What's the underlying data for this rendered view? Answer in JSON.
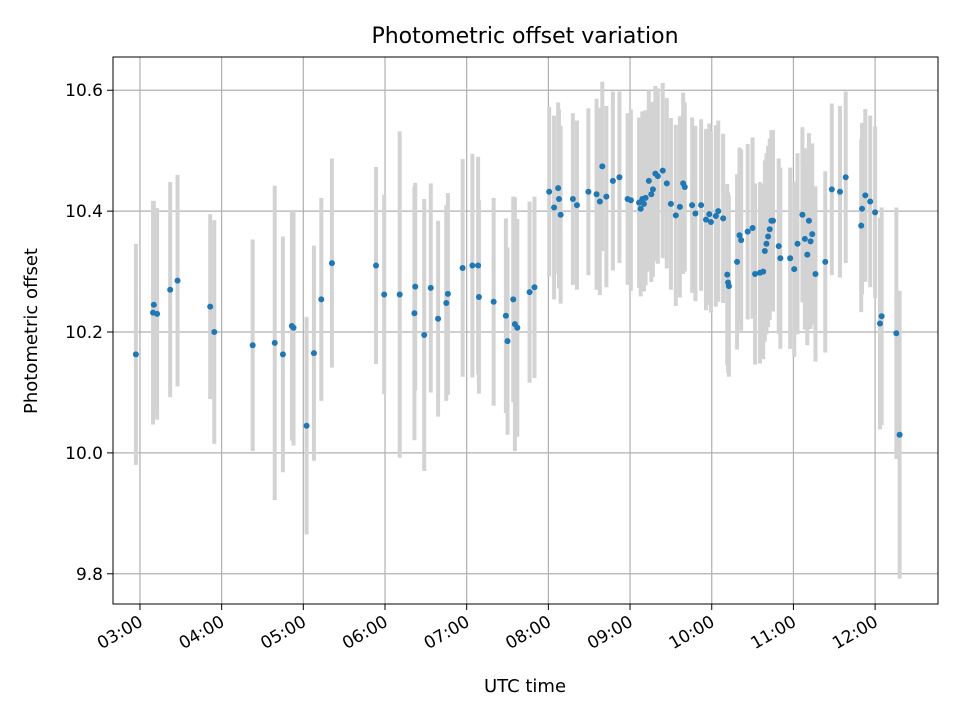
{
  "chart_data": {
    "type": "scatter",
    "title": "Photometric offset variation",
    "xlabel": "UTC time",
    "ylabel": "Photometric offset",
    "xlim": [
      2.67,
      12.77
    ],
    "ylim": [
      9.75,
      10.655
    ],
    "x_unit": "hours UTC",
    "grid": true,
    "xticks": [
      {
        "value": 3,
        "label": "03:00"
      },
      {
        "value": 4,
        "label": "04:00"
      },
      {
        "value": 5,
        "label": "05:00"
      },
      {
        "value": 6,
        "label": "06:00"
      },
      {
        "value": 7,
        "label": "07:00"
      },
      {
        "value": 8,
        "label": "08:00"
      },
      {
        "value": 9,
        "label": "09:00"
      },
      {
        "value": 10,
        "label": "10:00"
      },
      {
        "value": 11,
        "label": "11:00"
      },
      {
        "value": 12,
        "label": "12:00"
      }
    ],
    "yticks": [
      {
        "value": 9.8,
        "label": "9.8"
      },
      {
        "value": 10.0,
        "label": "10.0"
      },
      {
        "value": 10.2,
        "label": "10.2"
      },
      {
        "value": 10.4,
        "label": "10.4"
      },
      {
        "value": 10.6,
        "label": "10.6"
      }
    ],
    "colors": {
      "points": "#1f77b4",
      "errorbars": "#d3d3d3",
      "grid": "#b0b0b0"
    },
    "points": [
      [
        2.95,
        10.163,
        0.183
      ],
      [
        3.16,
        10.232,
        0.185
      ],
      [
        3.17,
        10.245,
        0.172
      ],
      [
        3.21,
        10.23,
        0.175
      ],
      [
        3.37,
        10.27,
        0.178
      ],
      [
        3.46,
        10.285,
        0.175
      ],
      [
        3.86,
        10.242,
        0.153
      ],
      [
        3.91,
        10.2,
        0.185
      ],
      [
        4.38,
        10.178,
        0.175
      ],
      [
        4.65,
        10.182,
        0.26
      ],
      [
        4.75,
        10.163,
        0.195
      ],
      [
        4.86,
        10.21,
        0.19
      ],
      [
        4.88,
        10.207,
        0.195
      ],
      [
        5.04,
        10.045,
        0.18
      ],
      [
        5.13,
        10.165,
        0.178
      ],
      [
        5.22,
        10.254,
        0.168
      ],
      [
        5.35,
        10.314,
        0.173
      ],
      [
        5.89,
        10.31,
        0.163
      ],
      [
        5.99,
        10.262,
        0.165
      ],
      [
        6.18,
        10.262,
        0.27
      ],
      [
        6.36,
        10.231,
        0.21
      ],
      [
        6.37,
        10.275,
        0.172
      ],
      [
        6.48,
        10.195,
        0.225
      ],
      [
        6.56,
        10.273,
        0.173
      ],
      [
        6.65,
        10.222,
        0.162
      ],
      [
        6.75,
        10.248,
        0.162
      ],
      [
        6.77,
        10.263,
        0.167
      ],
      [
        6.95,
        10.306,
        0.18
      ],
      [
        7.07,
        10.31,
        0.185
      ],
      [
        7.14,
        10.31,
        0.18
      ],
      [
        7.15,
        10.258,
        0.16
      ],
      [
        7.33,
        10.25,
        0.172
      ],
      [
        7.48,
        10.227,
        0.161
      ],
      [
        7.5,
        10.185,
        0.155
      ],
      [
        7.57,
        10.254,
        0.17
      ],
      [
        7.59,
        10.213,
        0.21
      ],
      [
        7.62,
        10.207,
        0.18
      ],
      [
        7.77,
        10.266,
        0.15
      ],
      [
        7.83,
        10.274,
        0.15
      ],
      [
        8.01,
        10.432,
        0.14
      ],
      [
        8.07,
        10.406,
        0.152
      ],
      [
        8.12,
        10.438,
        0.142
      ],
      [
        8.13,
        10.42,
        0.148
      ],
      [
        8.15,
        10.394,
        0.147
      ],
      [
        8.3,
        10.42,
        0.142
      ],
      [
        8.35,
        10.41,
        0.14
      ],
      [
        8.49,
        10.432,
        0.138
      ],
      [
        8.59,
        10.428,
        0.158
      ],
      [
        8.63,
        10.416,
        0.155
      ],
      [
        8.66,
        10.474,
        0.14
      ],
      [
        8.71,
        10.424,
        0.15
      ],
      [
        8.79,
        10.45,
        0.148
      ],
      [
        8.87,
        10.456,
        0.142
      ],
      [
        8.97,
        10.42,
        0.142
      ],
      [
        9.01,
        10.418,
        0.15
      ],
      [
        9.11,
        10.414,
        0.141
      ],
      [
        9.13,
        10.404,
        0.145
      ],
      [
        9.15,
        10.42,
        0.145
      ],
      [
        9.17,
        10.412,
        0.145
      ],
      [
        9.19,
        10.422,
        0.145
      ],
      [
        9.23,
        10.45,
        0.15
      ],
      [
        9.26,
        10.428,
        0.145
      ],
      [
        9.28,
        10.436,
        0.145
      ],
      [
        9.31,
        10.462,
        0.145
      ],
      [
        9.34,
        10.458,
        0.145
      ],
      [
        9.4,
        10.467,
        0.145
      ],
      [
        9.45,
        10.446,
        0.141
      ],
      [
        9.5,
        10.412,
        0.142
      ],
      [
        9.56,
        10.393,
        0.15
      ],
      [
        9.61,
        10.407,
        0.15
      ],
      [
        9.65,
        10.446,
        0.15
      ],
      [
        9.67,
        10.44,
        0.14
      ],
      [
        9.76,
        10.41,
        0.145
      ],
      [
        9.8,
        10.396,
        0.145
      ],
      [
        9.87,
        10.41,
        0.142
      ],
      [
        9.93,
        10.386,
        0.15
      ],
      [
        9.97,
        10.395,
        0.15
      ],
      [
        9.99,
        10.382,
        0.15
      ],
      [
        10.05,
        10.392,
        0.15
      ],
      [
        10.08,
        10.4,
        0.15
      ],
      [
        10.14,
        10.388,
        0.14
      ],
      [
        10.19,
        10.295,
        0.15
      ],
      [
        10.2,
        10.282,
        0.15
      ],
      [
        10.21,
        10.276,
        0.15
      ],
      [
        10.31,
        10.316,
        0.145
      ],
      [
        10.34,
        10.36,
        0.145
      ],
      [
        10.36,
        10.352,
        0.15
      ],
      [
        10.44,
        10.366,
        0.145
      ],
      [
        10.5,
        10.372,
        0.15
      ],
      [
        10.53,
        10.296,
        0.15
      ],
      [
        10.59,
        10.298,
        0.15
      ],
      [
        10.63,
        10.3,
        0.145
      ],
      [
        10.65,
        10.334,
        0.15
      ],
      [
        10.67,
        10.346,
        0.15
      ],
      [
        10.69,
        10.358,
        0.15
      ],
      [
        10.71,
        10.37,
        0.15
      ],
      [
        10.73,
        10.384,
        0.15
      ],
      [
        10.75,
        10.384,
        0.15
      ],
      [
        10.82,
        10.342,
        0.145
      ],
      [
        10.84,
        10.322,
        0.15
      ],
      [
        10.96,
        10.322,
        0.15
      ],
      [
        11.01,
        10.304,
        0.145
      ],
      [
        11.05,
        10.346,
        0.15
      ],
      [
        11.11,
        10.394,
        0.145
      ],
      [
        11.14,
        10.354,
        0.15
      ],
      [
        11.17,
        10.328,
        0.15
      ],
      [
        11.19,
        10.384,
        0.145
      ],
      [
        11.21,
        10.35,
        0.145
      ],
      [
        11.23,
        10.362,
        0.15
      ],
      [
        11.27,
        10.296,
        0.145
      ],
      [
        11.39,
        10.316,
        0.15
      ],
      [
        11.47,
        10.436,
        0.142
      ],
      [
        11.57,
        10.432,
        0.142
      ],
      [
        11.64,
        10.456,
        0.142
      ],
      [
        11.83,
        10.376,
        0.143
      ],
      [
        11.84,
        10.404,
        0.142
      ],
      [
        11.88,
        10.426,
        0.143
      ],
      [
        11.94,
        10.416,
        0.142
      ],
      [
        12.0,
        10.398,
        0.142
      ],
      [
        12.06,
        10.214,
        0.175
      ],
      [
        12.08,
        10.226,
        0.18
      ],
      [
        12.26,
        10.198,
        0.208
      ],
      [
        12.3,
        10.03,
        0.238
      ]
    ]
  }
}
